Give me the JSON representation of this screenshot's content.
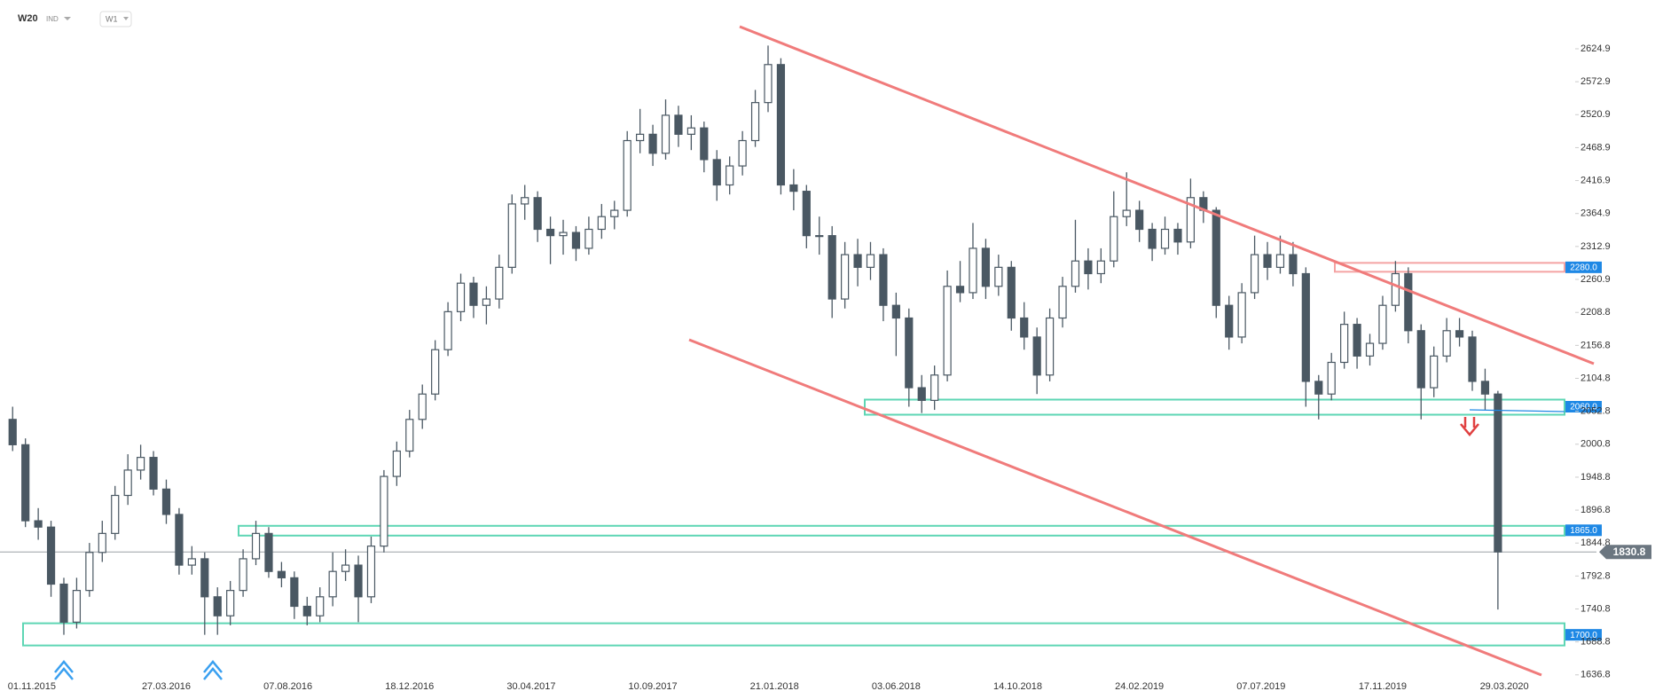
{
  "header": {
    "symbol": "W20",
    "market": "IND",
    "interval": "W1"
  },
  "chart_data": {
    "type": "candlestick",
    "x": [
      "11.10.2015",
      "25.10.2015",
      "08.11.2015",
      "22.11.2015",
      "06.12.2015",
      "20.12.2015",
      "03.01.2016",
      "17.01.2016",
      "31.01.2016",
      "14.02.2016",
      "28.02.2016",
      "13.03.2016",
      "27.03.2016",
      "10.04.2016",
      "24.04.2016",
      "08.05.2016",
      "22.05.2016",
      "05.06.2016",
      "19.06.2016",
      "03.07.2016",
      "17.07.2016",
      "31.07.2016",
      "14.08.2016",
      "28.08.2016",
      "11.09.2016",
      "25.09.2016",
      "09.10.2016",
      "23.10.2016",
      "06.11.2016",
      "20.11.2016",
      "04.12.2016",
      "18.12.2016",
      "01.01.2017",
      "15.01.2017",
      "29.01.2017",
      "12.02.2017",
      "26.02.2017",
      "12.03.2017",
      "26.03.2017",
      "09.04.2017",
      "23.04.2017",
      "07.05.2017",
      "21.05.2017",
      "04.06.2017",
      "18.06.2017",
      "02.07.2017",
      "16.07.2017",
      "30.07.2017",
      "13.08.2017",
      "27.08.2017",
      "10.09.2017",
      "24.09.2017",
      "08.10.2017",
      "22.10.2017",
      "05.11.2017",
      "19.11.2017",
      "03.12.2017",
      "17.12.2017",
      "31.12.2017",
      "14.01.2018",
      "28.01.2018",
      "11.02.2018",
      "25.02.2018",
      "11.03.2018",
      "25.03.2018",
      "08.04.2018",
      "22.04.2018",
      "06.05.2018",
      "20.05.2018",
      "03.06.2018",
      "17.06.2018",
      "01.07.2018",
      "15.07.2018",
      "29.07.2018",
      "12.08.2018",
      "26.08.2018",
      "09.09.2018",
      "23.09.2018",
      "07.10.2018",
      "21.10.2018",
      "04.11.2018",
      "18.11.2018",
      "02.12.2018",
      "16.12.2018",
      "30.12.2018",
      "13.01.2019",
      "27.01.2019",
      "10.02.2019",
      "24.02.2019",
      "10.03.2019",
      "24.03.2019",
      "07.04.2019",
      "21.04.2019",
      "05.05.2019",
      "19.05.2019",
      "02.06.2019",
      "16.06.2019",
      "30.06.2019",
      "14.07.2019",
      "28.07.2019",
      "11.08.2019",
      "25.08.2019",
      "08.09.2019",
      "22.09.2019",
      "06.10.2019",
      "20.10.2019",
      "03.11.2019",
      "17.11.2019",
      "01.12.2019",
      "15.12.2019",
      "29.12.2019",
      "12.01.2020",
      "26.01.2020",
      "09.02.2020",
      "23.02.2020",
      "08.03.2020",
      "22.03.2020"
    ],
    "ohlc": [
      [
        2040,
        2060,
        1990,
        2000
      ],
      [
        2000,
        2010,
        1870,
        1880
      ],
      [
        1880,
        1900,
        1850,
        1870
      ],
      [
        1870,
        1880,
        1760,
        1780
      ],
      [
        1780,
        1790,
        1700,
        1720
      ],
      [
        1720,
        1790,
        1710,
        1770
      ],
      [
        1770,
        1845,
        1760,
        1830
      ],
      [
        1830,
        1880,
        1815,
        1860
      ],
      [
        1860,
        1935,
        1850,
        1920
      ],
      [
        1920,
        1985,
        1905,
        1960
      ],
      [
        1960,
        2000,
        1945,
        1980
      ],
      [
        1980,
        1990,
        1920,
        1930
      ],
      [
        1930,
        1945,
        1875,
        1890
      ],
      [
        1890,
        1900,
        1795,
        1810
      ],
      [
        1810,
        1840,
        1795,
        1820
      ],
      [
        1820,
        1830,
        1700,
        1760
      ],
      [
        1760,
        1775,
        1700,
        1730
      ],
      [
        1730,
        1785,
        1715,
        1770
      ],
      [
        1770,
        1835,
        1760,
        1820
      ],
      [
        1820,
        1880,
        1810,
        1860
      ],
      [
        1860,
        1870,
        1790,
        1800
      ],
      [
        1800,
        1815,
        1775,
        1790
      ],
      [
        1790,
        1800,
        1725,
        1745
      ],
      [
        1745,
        1760,
        1715,
        1730
      ],
      [
        1730,
        1775,
        1720,
        1760
      ],
      [
        1760,
        1830,
        1745,
        1800
      ],
      [
        1800,
        1835,
        1785,
        1810
      ],
      [
        1810,
        1825,
        1720,
        1760
      ],
      [
        1760,
        1855,
        1750,
        1840
      ],
      [
        1840,
        1960,
        1830,
        1950
      ],
      [
        1950,
        2005,
        1935,
        1990
      ],
      [
        1990,
        2055,
        1980,
        2040
      ],
      [
        2040,
        2095,
        2025,
        2080
      ],
      [
        2080,
        2165,
        2070,
        2150
      ],
      [
        2150,
        2225,
        2140,
        2210
      ],
      [
        2210,
        2270,
        2195,
        2255
      ],
      [
        2255,
        2265,
        2200,
        2220
      ],
      [
        2220,
        2250,
        2190,
        2230
      ],
      [
        2230,
        2300,
        2215,
        2280
      ],
      [
        2280,
        2395,
        2270,
        2380
      ],
      [
        2380,
        2410,
        2355,
        2390
      ],
      [
        2390,
        2400,
        2320,
        2340
      ],
      [
        2340,
        2360,
        2285,
        2330
      ],
      [
        2330,
        2355,
        2300,
        2335
      ],
      [
        2335,
        2345,
        2290,
        2310
      ],
      [
        2310,
        2360,
        2300,
        2340
      ],
      [
        2340,
        2380,
        2325,
        2360
      ],
      [
        2360,
        2385,
        2340,
        2370
      ],
      [
        2370,
        2495,
        2360,
        2480
      ],
      [
        2480,
        2530,
        2460,
        2490
      ],
      [
        2490,
        2505,
        2440,
        2460
      ],
      [
        2460,
        2545,
        2450,
        2520
      ],
      [
        2520,
        2535,
        2470,
        2490
      ],
      [
        2490,
        2520,
        2465,
        2500
      ],
      [
        2500,
        2510,
        2430,
        2450
      ],
      [
        2450,
        2465,
        2385,
        2410
      ],
      [
        2410,
        2455,
        2395,
        2440
      ],
      [
        2440,
        2495,
        2425,
        2480
      ],
      [
        2480,
        2560,
        2470,
        2540
      ],
      [
        2540,
        2630,
        2525,
        2600
      ],
      [
        2600,
        2610,
        2395,
        2410
      ],
      [
        2410,
        2435,
        2370,
        2400
      ],
      [
        2400,
        2410,
        2310,
        2330
      ],
      [
        2330,
        2360,
        2300,
        2330
      ],
      [
        2330,
        2345,
        2200,
        2230
      ],
      [
        2230,
        2320,
        2215,
        2300
      ],
      [
        2300,
        2325,
        2250,
        2280
      ],
      [
        2280,
        2320,
        2260,
        2300
      ],
      [
        2300,
        2310,
        2195,
        2220
      ],
      [
        2220,
        2240,
        2140,
        2200
      ],
      [
        2200,
        2215,
        2060,
        2090
      ],
      [
        2090,
        2110,
        2050,
        2070
      ],
      [
        2070,
        2125,
        2055,
        2110
      ],
      [
        2110,
        2275,
        2100,
        2250
      ],
      [
        2250,
        2290,
        2225,
        2240
      ],
      [
        2240,
        2350,
        2230,
        2310
      ],
      [
        2310,
        2325,
        2230,
        2250
      ],
      [
        2250,
        2300,
        2235,
        2280
      ],
      [
        2280,
        2290,
        2180,
        2200
      ],
      [
        2200,
        2225,
        2150,
        2170
      ],
      [
        2170,
        2185,
        2080,
        2110
      ],
      [
        2110,
        2215,
        2100,
        2200
      ],
      [
        2200,
        2265,
        2185,
        2250
      ],
      [
        2250,
        2355,
        2240,
        2290
      ],
      [
        2290,
        2310,
        2245,
        2270
      ],
      [
        2270,
        2310,
        2255,
        2290
      ],
      [
        2290,
        2400,
        2280,
        2360
      ],
      [
        2360,
        2430,
        2345,
        2370
      ],
      [
        2370,
        2385,
        2320,
        2340
      ],
      [
        2340,
        2350,
        2290,
        2310
      ],
      [
        2310,
        2360,
        2300,
        2340
      ],
      [
        2340,
        2350,
        2300,
        2320
      ],
      [
        2320,
        2420,
        2310,
        2390
      ],
      [
        2390,
        2400,
        2350,
        2370
      ],
      [
        2370,
        2375,
        2200,
        2220
      ],
      [
        2220,
        2235,
        2150,
        2170
      ],
      [
        2170,
        2255,
        2160,
        2240
      ],
      [
        2240,
        2330,
        2230,
        2300
      ],
      [
        2300,
        2320,
        2260,
        2280
      ],
      [
        2280,
        2330,
        2270,
        2300
      ],
      [
        2300,
        2320,
        2250,
        2270
      ],
      [
        2270,
        2280,
        2060,
        2100
      ],
      [
        2100,
        2110,
        2040,
        2080
      ],
      [
        2080,
        2145,
        2070,
        2130
      ],
      [
        2130,
        2210,
        2120,
        2190
      ],
      [
        2190,
        2200,
        2120,
        2140
      ],
      [
        2140,
        2175,
        2125,
        2160
      ],
      [
        2160,
        2235,
        2150,
        2220
      ],
      [
        2220,
        2290,
        2210,
        2270
      ],
      [
        2270,
        2280,
        2160,
        2180
      ],
      [
        2180,
        2190,
        2040,
        2090
      ],
      [
        2090,
        2155,
        2075,
        2140
      ],
      [
        2140,
        2200,
        2130,
        2180
      ],
      [
        2180,
        2200,
        2155,
        2170
      ],
      [
        2170,
        2180,
        2085,
        2100
      ],
      [
        2100,
        2120,
        2055,
        2080
      ],
      [
        2080,
        2085,
        1740,
        1830.8
      ]
    ],
    "ylim": [
      1598.7,
      2701.9
    ],
    "yticks": [
      1636.8,
      1688.8,
      1740.8,
      1792.8,
      1844.8,
      1896.8,
      1948.8,
      2000.8,
      2052.8,
      2104.8,
      2156.8,
      2208.8,
      2260.9,
      2312.9,
      2364.9,
      2416.9,
      2468.9,
      2520.9,
      2572.9,
      2624.9
    ],
    "xticks": [
      "01.11.2015",
      "27.03.2016",
      "07.08.2016",
      "18.12.2016",
      "30.04.2017",
      "10.09.2017",
      "21.01.2018",
      "03.06.2018",
      "14.10.2018",
      "24.02.2019",
      "07.07.2019",
      "17.11.2019",
      "29.03.2020"
    ],
    "levels": [
      {
        "value": 2280,
        "label": "2280.0",
        "color": "#f4a3a3"
      },
      {
        "value": 2060,
        "label": "2060.0",
        "color": "#5ed6b4"
      },
      {
        "value": 1865,
        "label": "1865.0",
        "color": "#5ed6b4"
      },
      {
        "value": 1700,
        "label": "1700.0",
        "color": "#5ed6b4"
      }
    ],
    "up_color": "#ffffff",
    "down_color": "#4a5863",
    "line_color": "#4a5863",
    "trend_color": "#f07b7b",
    "label_color": "#1e88e5"
  }
}
